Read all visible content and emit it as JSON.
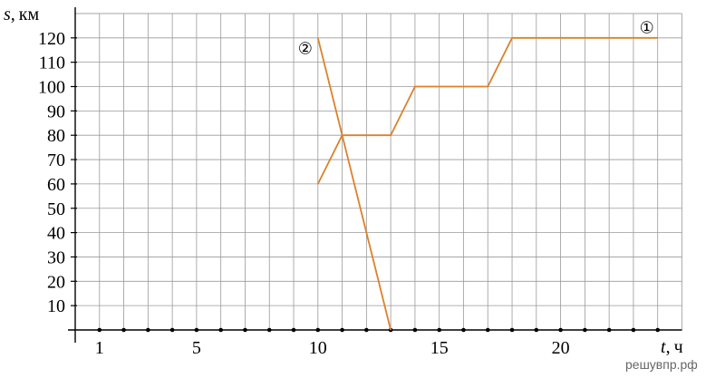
{
  "chart_data": {
    "type": "line",
    "xlabel": {
      "var": "t",
      "unit": "ч"
    },
    "ylabel": {
      "var": "s",
      "unit": "км"
    },
    "xlim": [
      0,
      25
    ],
    "ylim": [
      0,
      130
    ],
    "grid": true,
    "x_ticks": [
      1,
      5,
      10,
      15,
      20
    ],
    "y_ticks": [
      10,
      20,
      30,
      40,
      50,
      60,
      70,
      80,
      90,
      100,
      110,
      120
    ],
    "series": [
      {
        "name": "①",
        "color": "#D9822B",
        "points": [
          [
            10,
            60
          ],
          [
            11,
            80
          ],
          [
            13,
            80
          ],
          [
            14,
            100
          ],
          [
            17,
            100
          ],
          [
            18,
            120
          ],
          [
            24,
            120
          ]
        ]
      },
      {
        "name": "②",
        "color": "#D9822B",
        "points": [
          [
            10,
            120
          ],
          [
            13,
            0
          ]
        ]
      }
    ]
  },
  "watermark": "решувпр.рф"
}
